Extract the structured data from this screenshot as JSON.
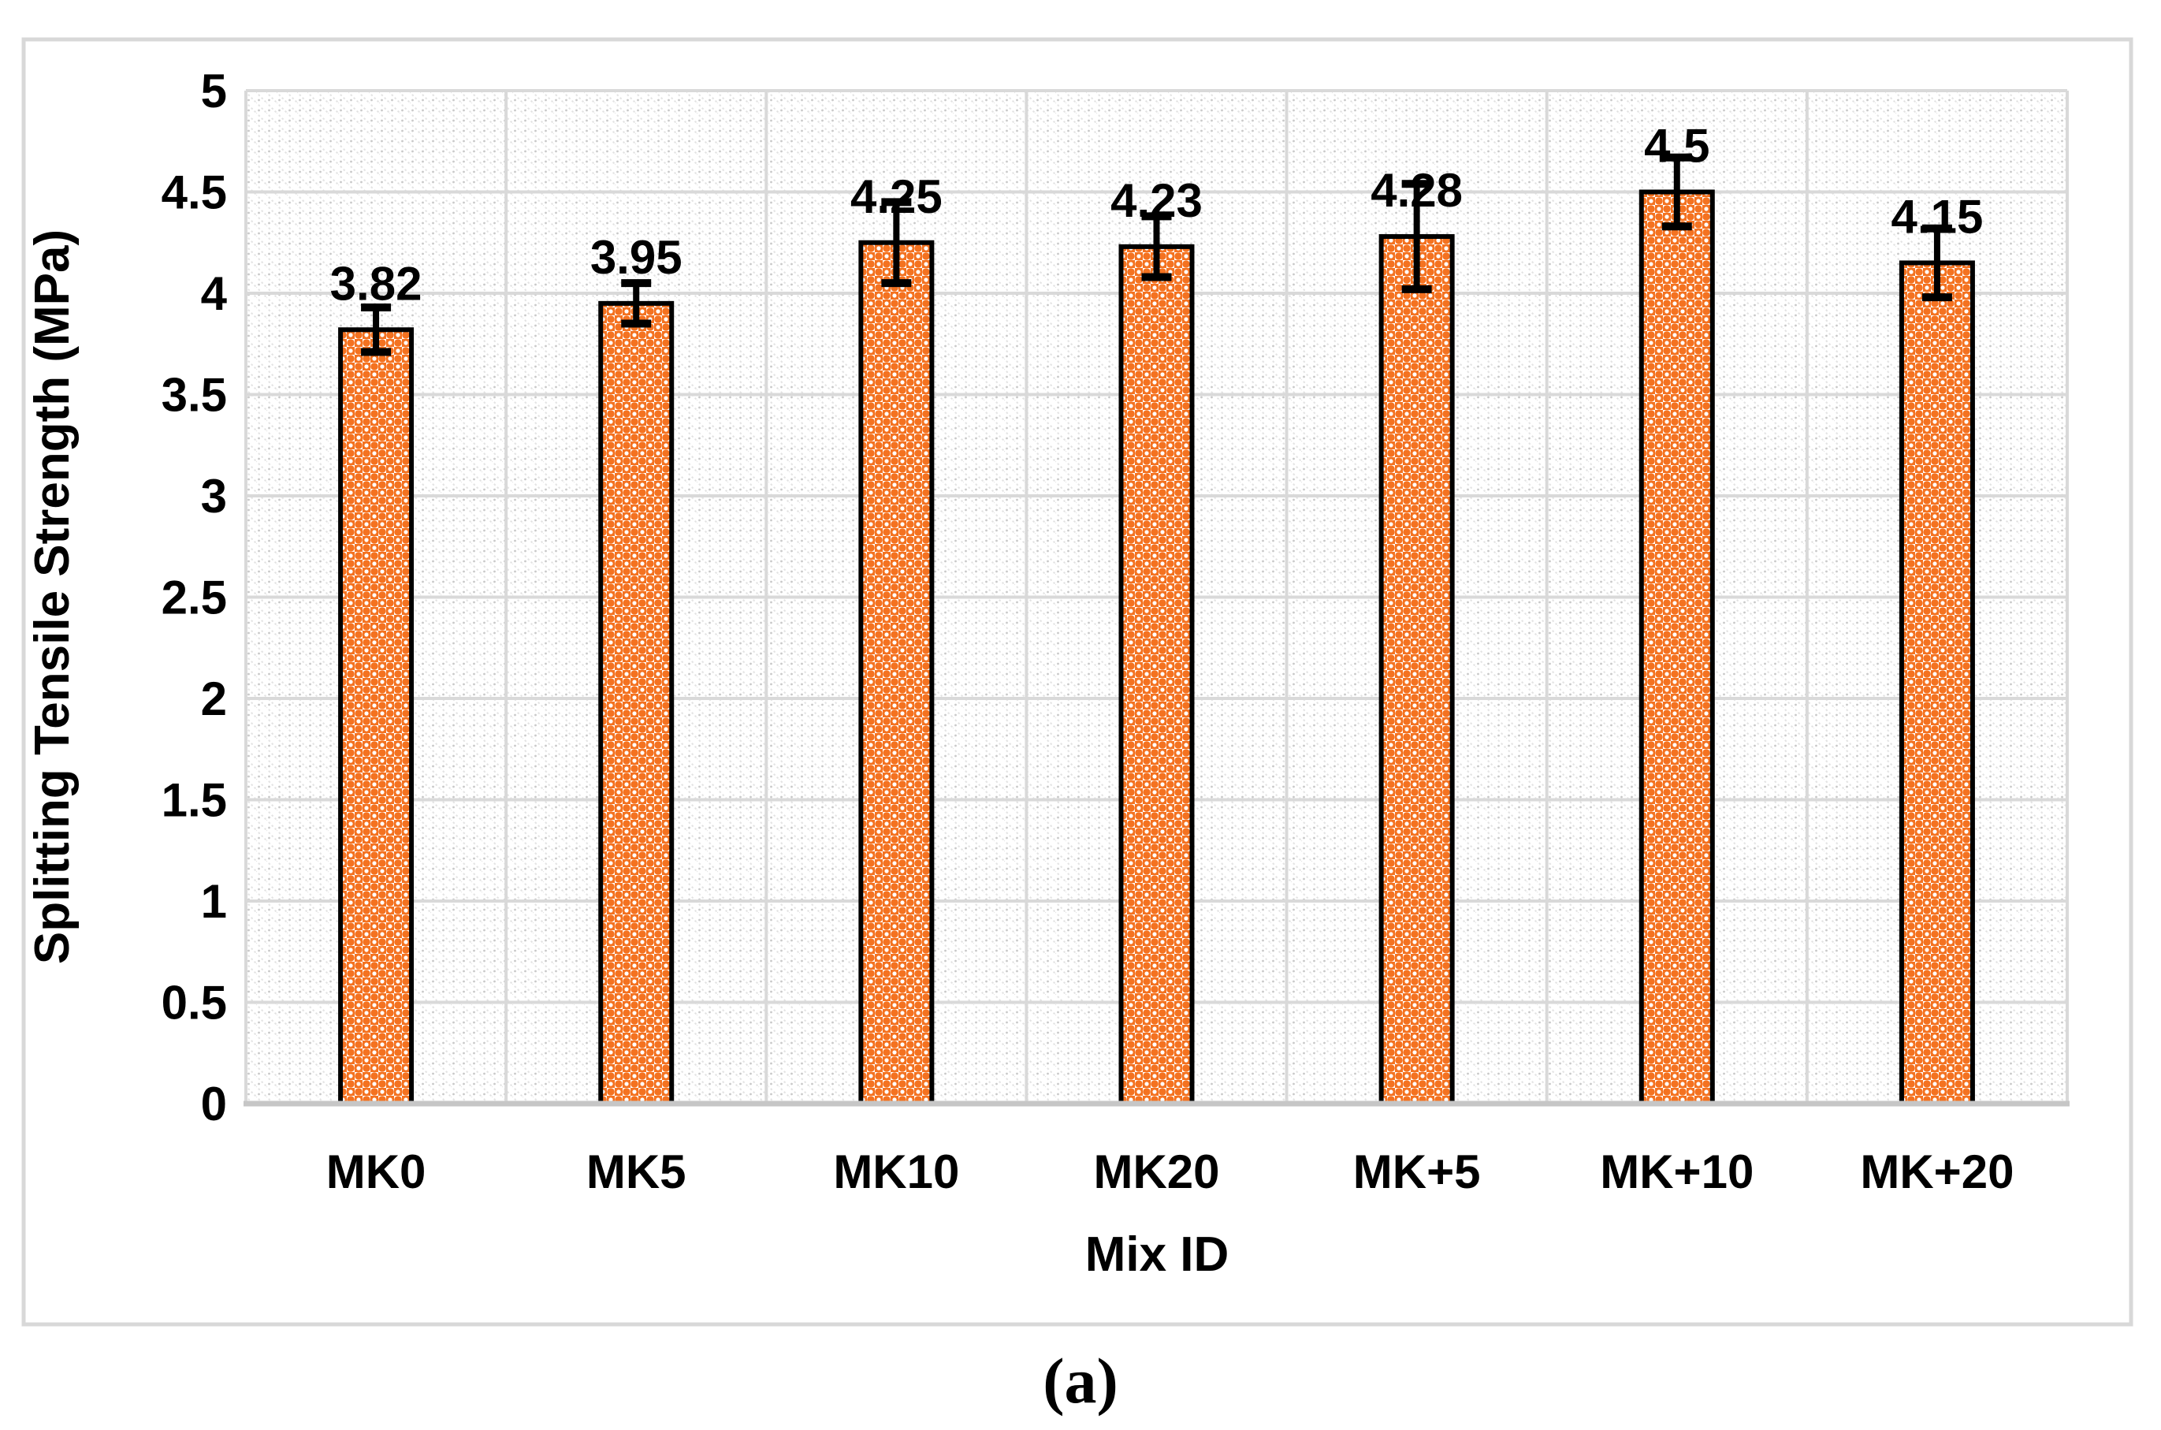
{
  "figure": {
    "caption": "(a)"
  },
  "chart_data": {
    "type": "bar",
    "title": "",
    "categories": [
      "MK0",
      "MK5",
      "MK10",
      "MK20",
      "MK+5",
      "MK+10",
      "MK+20"
    ],
    "values": [
      3.82,
      3.95,
      4.25,
      4.23,
      4.28,
      4.5,
      4.15
    ],
    "value_labels": [
      "3.82",
      "3.95",
      "4.25",
      "4.23",
      "4.28",
      "4.5",
      "4.15"
    ],
    "errors": [
      0.11,
      0.1,
      0.2,
      0.15,
      0.26,
      0.17,
      0.17
    ],
    "xlabel": "Mix ID",
    "ylabel": "Splitting Tensile Strength (MPa)",
    "ylim": [
      0,
      5
    ],
    "ytick_step": 0.5,
    "yticks": [
      "0",
      "0.5",
      "1",
      "1.5",
      "2",
      "2.5",
      "3",
      "3.5",
      "4",
      "4.5",
      "5"
    ],
    "grid": true,
    "legend": "none",
    "colors": {
      "bar_fill": "#F47220",
      "bar_border": "#000000",
      "error_bar": "#000000",
      "gridline": "#D9D9D9",
      "axis_line": "#C6C6C6",
      "figure_border": "#D8D8D8",
      "hatch_line": "#E3E3E3",
      "hatch_dot": "#C9C9C9",
      "text": "#000000"
    }
  }
}
